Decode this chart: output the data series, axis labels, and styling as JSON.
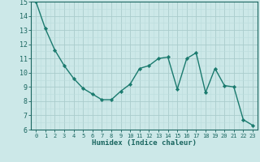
{
  "x": [
    0,
    1,
    2,
    3,
    4,
    5,
    6,
    7,
    8,
    9,
    10,
    11,
    12,
    13,
    14,
    15,
    16,
    17,
    18,
    19,
    20,
    21,
    22,
    23
  ],
  "y": [
    15.0,
    13.1,
    11.6,
    10.5,
    9.6,
    8.9,
    8.5,
    8.1,
    8.1,
    8.7,
    9.2,
    10.3,
    10.5,
    11.0,
    11.1,
    8.85,
    11.0,
    11.4,
    8.6,
    10.3,
    9.1,
    9.0,
    6.7,
    6.3
  ],
  "line_color": "#1a7a6e",
  "marker": "D",
  "marker_size": 2.2,
  "bg_color": "#cce8e8",
  "grid_major_color": "#aacccc",
  "grid_minor_color": "#bbdddd",
  "xlabel": "Humidex (Indice chaleur)",
  "xlim": [
    -0.5,
    23.5
  ],
  "ylim": [
    6,
    15
  ],
  "yticks": [
    6,
    7,
    8,
    9,
    10,
    11,
    12,
    13,
    14,
    15
  ],
  "xticks": [
    0,
    1,
    2,
    3,
    4,
    5,
    6,
    7,
    8,
    9,
    10,
    11,
    12,
    13,
    14,
    15,
    16,
    17,
    18,
    19,
    20,
    21,
    22,
    23
  ],
  "title_color": "#1a6660",
  "axes_color": "#1a6660",
  "tick_color": "#1a6660",
  "label_fontsize": 6.5,
  "tick_fontsize": 6.0,
  "linewidth": 1.0
}
